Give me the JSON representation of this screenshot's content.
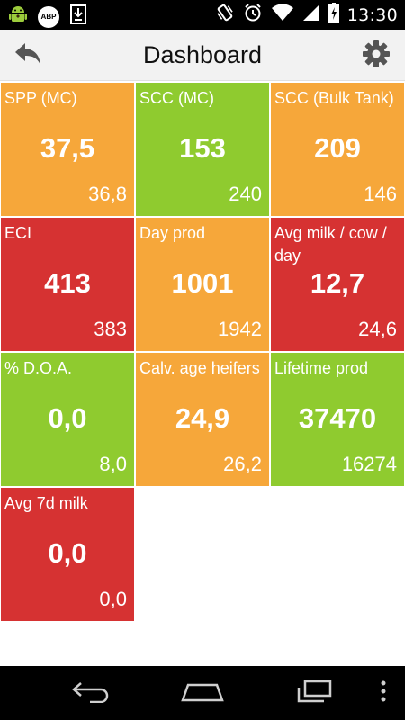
{
  "status_bar": {
    "time": "13:30",
    "abp_label": "ABP"
  },
  "action_bar": {
    "title": "Dashboard"
  },
  "colors": {
    "orange": "#f6a73a",
    "green": "#8fcb2f",
    "red": "#d63232"
  },
  "tiles": [
    {
      "label": "SPP (MC)",
      "value": "37,5",
      "sub": "36,8",
      "color": "orange"
    },
    {
      "label": "SCC (MC)",
      "value": "153",
      "sub": "240",
      "color": "green"
    },
    {
      "label": "SCC (Bulk Tank)",
      "value": "209",
      "sub": "146",
      "color": "orange"
    },
    {
      "label": "ECI",
      "value": "413",
      "sub": "383",
      "color": "red"
    },
    {
      "label": "Day prod",
      "value": "1001",
      "sub": "1942",
      "color": "orange"
    },
    {
      "label": "Avg milk / cow / day",
      "value": "12,7",
      "sub": "24,6",
      "color": "red"
    },
    {
      "label": "% D.O.A.",
      "value": "0,0",
      "sub": "8,0",
      "color": "green"
    },
    {
      "label": "Calv. age heifers",
      "value": "24,9",
      "sub": "26,2",
      "color": "orange"
    },
    {
      "label": "Lifetime prod",
      "value": "37470",
      "sub": "16274",
      "color": "green"
    },
    {
      "label": "Avg 7d milk",
      "value": "0,0",
      "sub": "0,0",
      "color": "red"
    }
  ]
}
